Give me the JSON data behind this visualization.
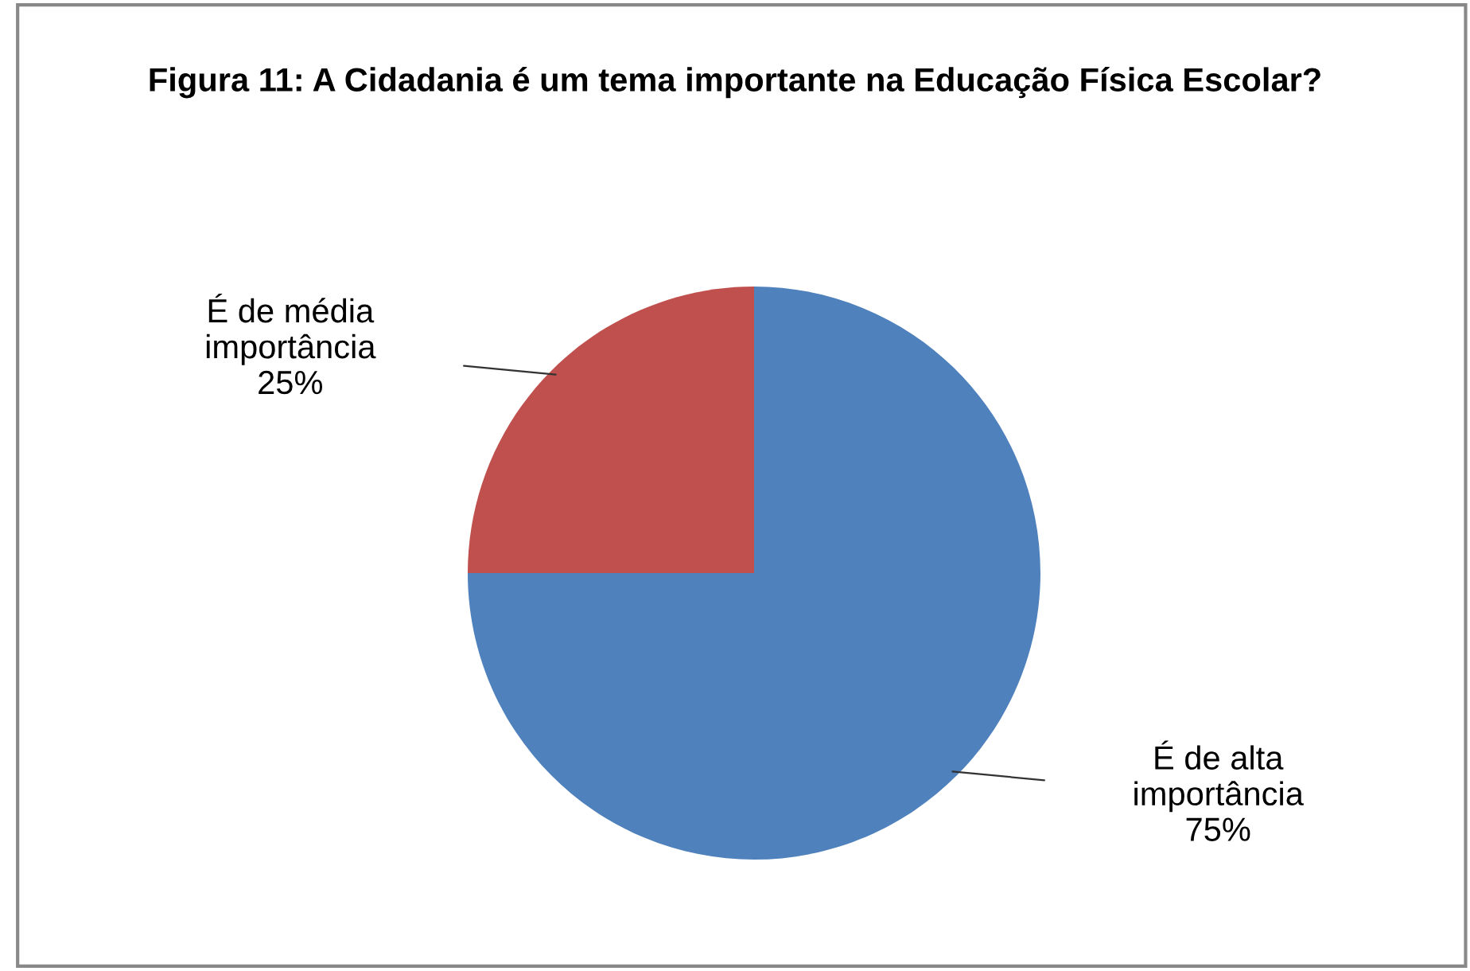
{
  "chart_data": {
    "type": "pie",
    "title": "Figura 11: A Cidadania é um tema importante na Educação Física Escolar?",
    "categories": [
      "É de alta importância",
      "É de média importância"
    ],
    "values": [
      75,
      25
    ],
    "value_labels": [
      "75%",
      "25%"
    ],
    "colors": [
      "#4f81bd",
      "#c0504d"
    ],
    "legend": false
  }
}
